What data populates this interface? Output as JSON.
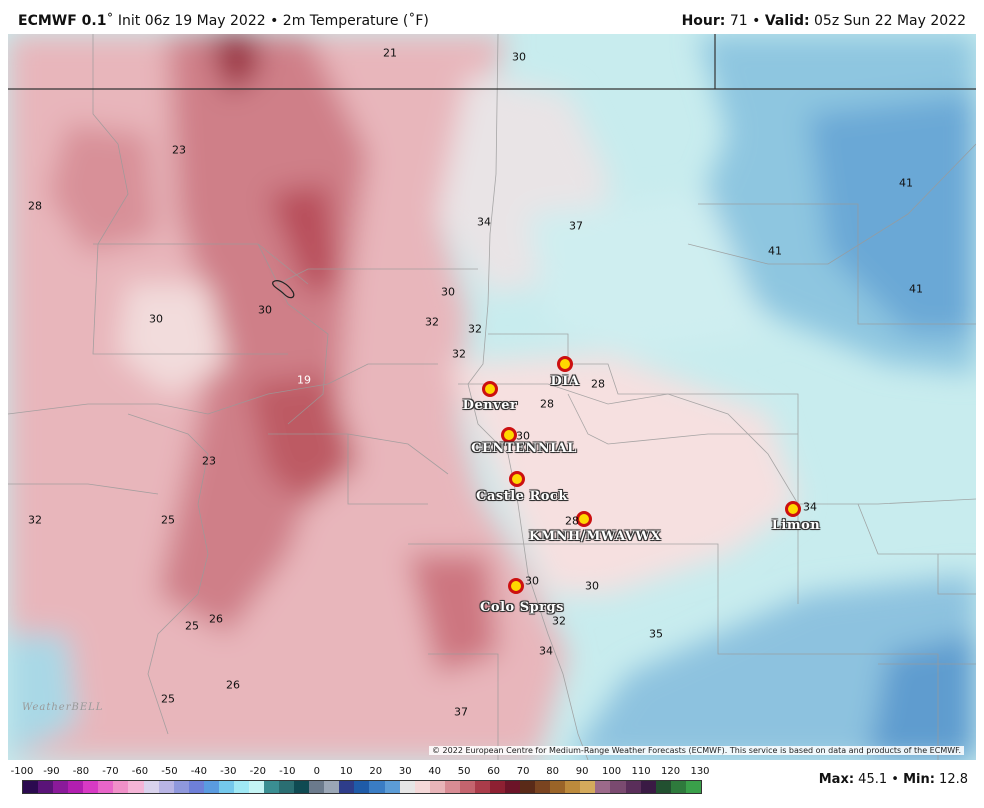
{
  "header": {
    "model": "ECMWF 0.1",
    "run": "˚ Init 06z 19 May 2022 • 2m Temperature (˚F)",
    "hour_label": "Hour:",
    "hour_value": " 71 • ",
    "valid_label": "Valid:",
    "valid_value": " 05z Sun 22 May 2022"
  },
  "cities": [
    {
      "name": "DIA"
    },
    {
      "name": "Denver"
    },
    {
      "name": "CENTENNIAL"
    },
    {
      "name": "Castle Rock"
    },
    {
      "name": "KMNH/MWAVWX"
    },
    {
      "name": "Limon"
    },
    {
      "name": "Colo Sprgs"
    }
  ],
  "point_values": [
    "21",
    "30",
    "23",
    "28",
    "34",
    "37",
    "41",
    "41",
    "41",
    "30",
    "30",
    "30",
    "32",
    "32",
    "32",
    "19",
    "28",
    "28",
    "30",
    "23",
    "32",
    "25",
    "34",
    "28",
    "30",
    "30",
    "32",
    "25",
    "26",
    "35",
    "34",
    "25",
    "26",
    "37"
  ],
  "logo_text": "WeatherBELL",
  "copyright": "© 2022 European Centre for Medium-Range Weather Forecasts (ECMWF). This service is based on data and products of the ECMWF.",
  "legend": {
    "ticks": [
      "-100",
      "-90",
      "-80",
      "-70",
      "-60",
      "-50",
      "-40",
      "-30",
      "-20",
      "-10",
      "0",
      "10",
      "20",
      "30",
      "40",
      "50",
      "60",
      "70",
      "80",
      "90",
      "100",
      "110",
      "120",
      "130"
    ],
    "colors": [
      "#2b0a4f",
      "#5a1478",
      "#8a1a9a",
      "#b21fb0",
      "#d83ac4",
      "#e865c8",
      "#f090c8",
      "#f4b4d6",
      "#d9d2ec",
      "#b8b4e4",
      "#8f98dc",
      "#6e7fd8",
      "#5a9be0",
      "#74c8ec",
      "#9fe8f4",
      "#c4f4f4",
      "#3a8e92",
      "#2a6e72",
      "#0f4a52",
      "#6b7a8c",
      "#9aa6b6",
      "#2e3d8a",
      "#1f5ba8",
      "#3a7cc4",
      "#5c9cd6",
      "#e6e6e6",
      "#f4d8d8",
      "#e8b4b8",
      "#d88c94",
      "#c4646e",
      "#aa3c4a",
      "#8e2032",
      "#6c1428",
      "#5a2a18",
      "#7a4420",
      "#9a6428",
      "#bc8a3c",
      "#d4aa5c",
      "#9c6a8a",
      "#7a4a70",
      "#5a2e5a",
      "#3a1a44",
      "#225030",
      "#2e7a3c",
      "#3aa04a"
    ],
    "max_label": "Max:",
    "max_value": " 45.1 • ",
    "min_label": "Min:",
    "min_value": " 12.8"
  }
}
